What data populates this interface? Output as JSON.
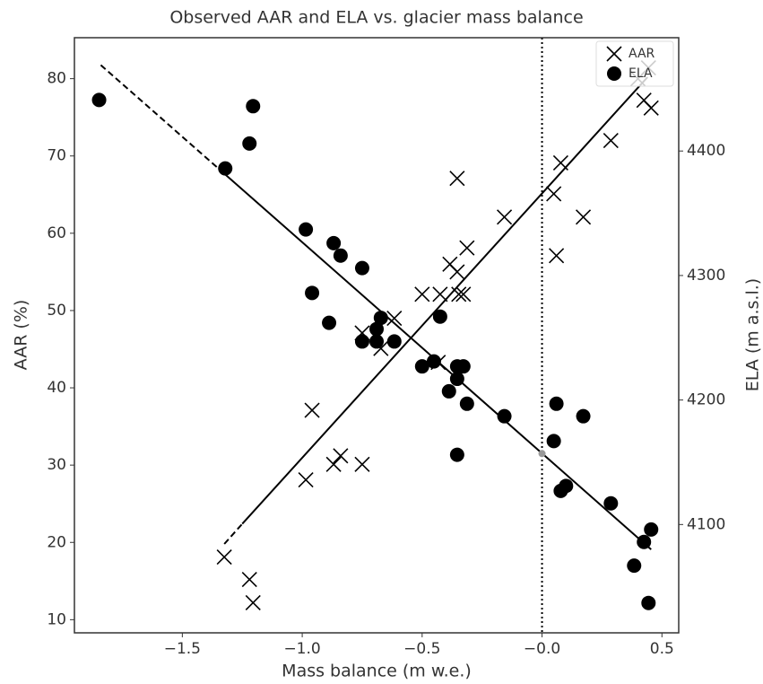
{
  "chart_data": {
    "type": "scatter",
    "title": "Observed AAR and ELA vs. glacier mass balance",
    "xlabel": "Mass balance (m w.e.)",
    "ylabel": "AAR (%)",
    "y2label": "ELA (m a.s.l.)",
    "xlim": [
      -1.95,
      0.57
    ],
    "ylim": [
      8.3,
      85.3
    ],
    "y2lim": [
      4013,
      4491
    ],
    "xticks": [
      {
        "value": -1.5,
        "label": "−1.5"
      },
      {
        "value": -1.0,
        "label": "−1.0"
      },
      {
        "value": -0.5,
        "label": "−0.5"
      },
      {
        "value": 0,
        "label": "−0.0"
      },
      0.5
    ],
    "yticks": [
      10,
      20,
      30,
      40,
      50,
      60,
      70,
      80
    ],
    "y2ticks": [
      4100,
      4200,
      4300,
      4400
    ],
    "legend": "upper right",
    "vline": 0,
    "series": [
      {
        "name": "AAR",
        "marker": "x",
        "color": "#000000",
        "x": [
          -1.325,
          -1.22,
          -1.205,
          -0.985,
          -0.959,
          -0.869,
          -0.84,
          -0.75,
          -0.75,
          -0.672,
          -0.616,
          -0.5,
          -0.433,
          -0.425,
          -0.384,
          -0.354,
          -0.354,
          -0.347,
          -0.328,
          -0.313,
          -0.157,
          0.049,
          0.06,
          0.078,
          0.172,
          0.287,
          0.4,
          0.425,
          0.455,
          0.444
        ],
        "values": [
          18.1,
          15.2,
          12.2,
          28.1,
          37.1,
          30.1,
          31.2,
          30.1,
          47.1,
          45.1,
          49.0,
          52.1,
          43.3,
          52.1,
          56.0,
          55.0,
          67.1,
          52.1,
          52.1,
          58.1,
          62.1,
          65.1,
          57.1,
          69.1,
          62.1,
          72.0,
          80.0,
          77.2,
          76.2,
          81.4
        ]
      },
      {
        "name": "ELA",
        "marker": "o",
        "color": "#000000",
        "axis": "y2",
        "x": [
          -1.847,
          -1.205,
          -1.22,
          -1.321,
          -0.985,
          -0.869,
          -0.84,
          -0.75,
          -0.959,
          -0.888,
          -0.672,
          -0.69,
          -0.69,
          -0.75,
          -0.616,
          -0.425,
          -0.5,
          -0.451,
          -0.354,
          -0.328,
          -0.354,
          -0.388,
          -0.313,
          -0.157,
          -0.354,
          0.06,
          0.049,
          0.078,
          0.1,
          0.172,
          0.287,
          0.384,
          0.425,
          0.455,
          0.444
        ],
        "values": [
          4441,
          4436,
          4406,
          4386,
          4337,
          4326,
          4316,
          4306,
          4286,
          4262,
          4266,
          4257,
          4247,
          4247,
          4247,
          4267,
          4227,
          4231,
          4227,
          4227,
          4217,
          4207,
          4197,
          4187,
          4156,
          4197,
          4167,
          4127,
          4131,
          4187,
          4117,
          4067,
          4086,
          4096,
          4037
        ]
      }
    ],
    "fits": [
      {
        "x": [
          -1.325,
          -1.25
        ],
        "values": [
          19.8,
          22.4
        ],
        "dashed": true,
        "color": "#000000"
      },
      {
        "x": [
          -1.25,
          0.44
        ],
        "values": [
          22.4,
          80.2
        ],
        "dashed": false,
        "color": "#000000"
      },
      {
        "x": [
          -1.84,
          -1.32
        ],
        "values": [
          4469,
          4381
        ],
        "dashed": true,
        "color": "#000000",
        "axis": "y2"
      },
      {
        "x": [
          -1.32,
          0.455
        ],
        "values": [
          4381,
          4080
        ],
        "dashed": false,
        "color": "#000000",
        "axis": "y2"
      }
    ],
    "point": {
      "x": 0,
      "value": 4157,
      "axis": "y2",
      "color": "#999999"
    }
  }
}
